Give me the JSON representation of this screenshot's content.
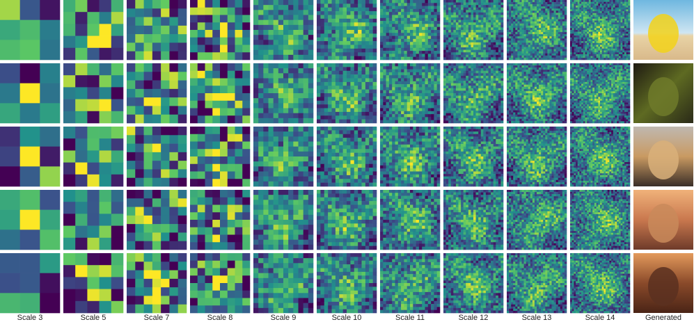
{
  "columns": [
    "Scale 3",
    "Scale 5",
    "Scale 7",
    "Scale 8",
    "Scale 9",
    "Scale 10",
    "Scale 11",
    "Scale 12",
    "Scale 13",
    "Scale 14",
    "Generated"
  ]
}
